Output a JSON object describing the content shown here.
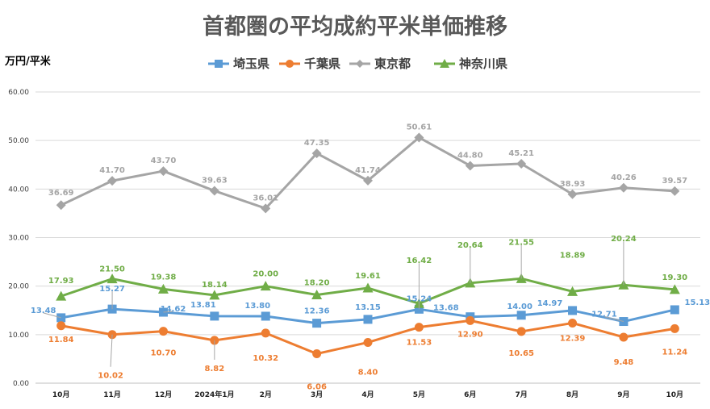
{
  "chart_data": {
    "type": "line",
    "title": "首都圏の平均成約平米単価推移",
    "ylabel": "万円/平米",
    "xlabel": "",
    "categories": [
      "10月",
      "11月",
      "12月",
      "2024年1月",
      "2月",
      "3月",
      "4月",
      "5月",
      "6月",
      "7月",
      "8月",
      "9月",
      "10月"
    ],
    "ylim": [
      0,
      60
    ],
    "yticks": [
      0,
      10,
      20,
      30,
      40,
      50,
      60
    ],
    "ytick_labels": [
      "0.00",
      "10.00",
      "20.00",
      "30.00",
      "40.00",
      "50.00",
      "60.00"
    ],
    "grid": true,
    "legend": "top",
    "series": [
      {
        "name": "埼玉県",
        "color": "#5B9BD5",
        "marker": "square",
        "values": [
          13.48,
          15.27,
          14.62,
          13.81,
          13.8,
          12.36,
          13.15,
          15.24,
          13.68,
          14.0,
          14.97,
          12.71,
          15.13
        ],
        "labels": [
          "13.48",
          "15.27",
          "14.62",
          "13.81",
          "13.80",
          "12.36",
          "13.15",
          "15.24",
          "13.68",
          "14.00",
          "14.97",
          "12.71",
          "15.13"
        ]
      },
      {
        "name": "千葉県",
        "color": "#ED7D31",
        "marker": "circle",
        "values": [
          11.84,
          10.02,
          10.7,
          8.82,
          10.32,
          6.06,
          8.4,
          11.53,
          12.9,
          10.65,
          12.39,
          9.48,
          11.24
        ],
        "labels": [
          "11.84",
          "10.02",
          "10.70",
          "8.82",
          "10.32",
          "6.06",
          "8.40",
          "11.53",
          "12.90",
          "10.65",
          "12.39",
          "9.48",
          "11.24"
        ]
      },
      {
        "name": "東京都",
        "color": "#A5A5A5",
        "marker": "diamond",
        "values": [
          36.69,
          41.7,
          43.7,
          39.63,
          36.01,
          47.35,
          41.74,
          50.61,
          44.8,
          45.21,
          38.93,
          40.26,
          39.57
        ],
        "labels": [
          "36.69",
          "41.70",
          "43.70",
          "39.63",
          "36.01",
          "47.35",
          "41.74",
          "50.61",
          "44.80",
          "45.21",
          "38.93",
          "40.26",
          "39.57"
        ]
      },
      {
        "name": "神奈川県",
        "color": "#70AD47",
        "marker": "triangle",
        "values": [
          17.93,
          21.5,
          19.38,
          18.14,
          20.0,
          18.2,
          19.61,
          16.42,
          20.64,
          21.55,
          18.89,
          20.24,
          19.3
        ],
        "labels": [
          "17.93",
          "21.50",
          "19.38",
          "18.14",
          "20.00",
          "18.20",
          "19.61",
          "16.42",
          "20.64",
          "21.55",
          "18.89",
          "20.24",
          "19.30"
        ]
      }
    ]
  }
}
